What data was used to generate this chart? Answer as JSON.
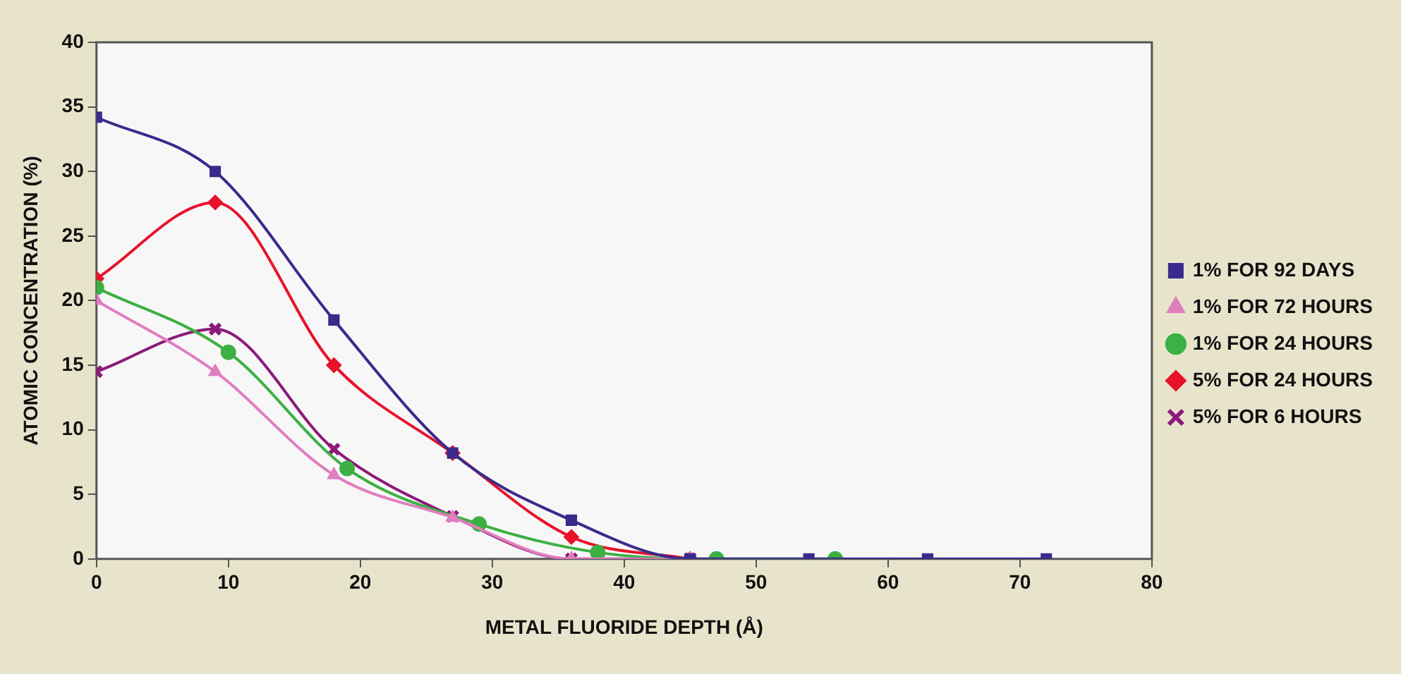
{
  "chart_data": {
    "type": "line",
    "xlabel": "METAL FLUORIDE DEPTH (Å)",
    "ylabel": "ATOMIC CONCENTRATION (%)",
    "xlim": [
      0,
      80
    ],
    "xticks": [
      0,
      10,
      20,
      30,
      40,
      50,
      60,
      70,
      80
    ],
    "ylim": [
      0,
      40
    ],
    "yticks": [
      0,
      5,
      10,
      15,
      20,
      25,
      30,
      35,
      40
    ],
    "grid": false,
    "legend": "right",
    "series": [
      {
        "name": "1% FOR 92 DAYS",
        "color": "#3b2a8c",
        "marker": "square",
        "x": [
          0,
          9,
          18,
          27,
          36,
          45,
          54,
          63,
          72
        ],
        "values": [
          34.2,
          30,
          18.5,
          8.2,
          3,
          0,
          0,
          0,
          0
        ]
      },
      {
        "name": "1% FOR 72 HOURS",
        "color": "#e07ec0",
        "marker": "triangle",
        "x": [
          0,
          9,
          18,
          27,
          36,
          45
        ],
        "values": [
          20,
          14.5,
          6.5,
          3.2,
          0,
          0
        ]
      },
      {
        "name": "1% FOR 24 HOURS",
        "color": "#3cb043",
        "marker": "circle",
        "x": [
          0,
          10,
          19,
          29,
          38,
          47,
          56
        ],
        "values": [
          21,
          16,
          7,
          2.7,
          0.5,
          0,
          0
        ]
      },
      {
        "name": "5% FOR 24 HOURS",
        "color": "#e8132a",
        "marker": "diamond",
        "x": [
          0,
          9,
          18,
          27,
          36,
          45
        ],
        "values": [
          21.7,
          27.6,
          15,
          8.2,
          1.7,
          0
        ]
      },
      {
        "name": "5% FOR 6 HOURS",
        "color": "#8b1a7a",
        "marker": "cross",
        "x": [
          0,
          9,
          18,
          27,
          36,
          45
        ],
        "values": [
          14.5,
          17.8,
          8.5,
          3.3,
          0,
          0
        ]
      }
    ]
  }
}
